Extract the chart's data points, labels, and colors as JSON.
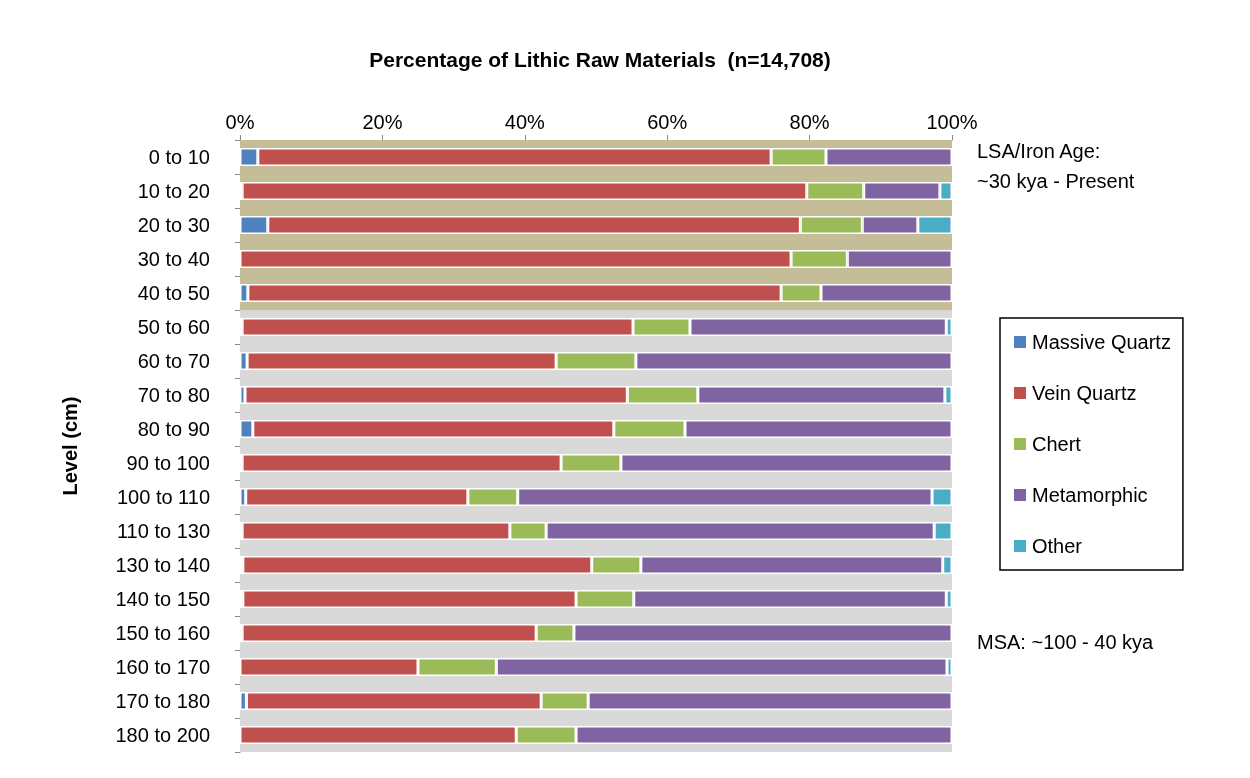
{
  "chart_data": {
    "type": "bar",
    "orientation": "horizontal",
    "stacked": true,
    "title": "Percentage of Lithic Raw Materials  (n=14,708)",
    "ylabel": "Level (cm)",
    "categories": [
      "0 to 10",
      "10 to 20",
      "20 to 30",
      "30 to 40",
      "40 to 50",
      "50 to 60",
      "60 to 70",
      "70 to 80",
      "80 to 90",
      "90 to 100",
      "100 to 110",
      "110 to 130",
      "130 to 140",
      "140 to 150",
      "150 to 160",
      "160 to 170",
      "170 to 180",
      "180 to 200"
    ],
    "series": [
      {
        "name": "Massive Quartz",
        "color": "#4f81bd",
        "values": [
          2.5,
          0.3,
          3.9,
          0,
          1.1,
          0.3,
          1.0,
          0.7,
          1.8,
          0.3,
          0.8,
          0.3,
          0.4,
          0.4,
          0.3,
          0,
          0.9,
          0
        ]
      },
      {
        "name": "Vein Quartz",
        "color": "#c0504d",
        "values": [
          72.1,
          79.3,
          74.8,
          77.4,
          74.9,
          54.9,
          43.4,
          53.7,
          50.7,
          44.8,
          31.2,
          37.6,
          49.0,
          46.8,
          41.3,
          25.0,
          41.4,
          38.8
        ]
      },
      {
        "name": "Chert",
        "color": "#9bbb59",
        "values": [
          7.7,
          8.0,
          8.7,
          7.9,
          5.6,
          8.0,
          11.2,
          9.9,
          10.0,
          8.4,
          7.0,
          5.1,
          6.9,
          8.1,
          5.3,
          11.0,
          6.6,
          8.4
        ]
      },
      {
        "name": "Metamorphic",
        "color": "#8064a2",
        "values": [
          17.7,
          10.7,
          7.8,
          14.7,
          18.4,
          36.0,
          44.4,
          34.7,
          37.5,
          46.5,
          58.2,
          54.5,
          42.4,
          43.9,
          53.1,
          63.3,
          51.1,
          52.8
        ]
      },
      {
        "name": "Other",
        "color": "#4bacc6",
        "values": [
          0,
          1.7,
          4.8,
          0,
          0,
          0.8,
          0,
          1.0,
          0,
          0,
          2.8,
          2.5,
          1.3,
          0.8,
          0,
          0.7,
          0,
          0
        ]
      }
    ],
    "xlim": [
      0,
      100
    ],
    "xticks": [
      {
        "value": 0,
        "label": "0%"
      },
      {
        "value": 20,
        "label": "20%"
      },
      {
        "value": 40,
        "label": "40%"
      },
      {
        "value": 60,
        "label": "60%"
      },
      {
        "value": 80,
        "label": "80%"
      },
      {
        "value": 100,
        "label": "100%"
      }
    ],
    "bands": [
      {
        "axis": "y",
        "from": "0 to 10",
        "to": "40 to 50",
        "label": "LSA/Iron Age: ~30 kya - Present",
        "color": "#c4bd97"
      },
      {
        "axis": "y",
        "from": "50 to 60",
        "to": "180 to 200",
        "label": "MSA: ~100 - 40 kya",
        "color": "#d9d9d9"
      }
    ],
    "legend": "right",
    "grid": false
  }
}
